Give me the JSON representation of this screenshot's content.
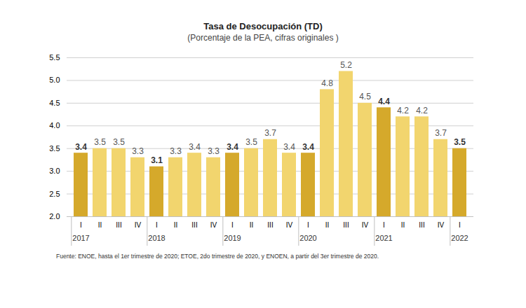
{
  "chart_data": {
    "type": "bar",
    "title": "Tasa de Desocupación (TD)",
    "subtitle": "(Porcentaje de la PEA, cifras originales )",
    "caption": "Fuente: ENOE, hasta el 1er trimestre de 2020; ETOE, 2do trimestre de 2020, y ENOEN, a partir del 3er trimestre de 2020.",
    "categories": [
      "I",
      "II",
      "III",
      "IV",
      "I",
      "II",
      "III",
      "IV",
      "I",
      "II",
      "III",
      "IV",
      "I",
      "II",
      "III",
      "IV",
      "I",
      "II",
      "III",
      "IV",
      "I"
    ],
    "year_labels": [
      "2017",
      null,
      null,
      null,
      "2018",
      null,
      null,
      null,
      "2019",
      null,
      null,
      null,
      "2020",
      null,
      null,
      null,
      "2021",
      null,
      null,
      null,
      "2022"
    ],
    "values": [
      3.4,
      3.5,
      3.5,
      3.3,
      3.1,
      3.3,
      3.4,
      3.3,
      3.4,
      3.5,
      3.7,
      3.4,
      3.4,
      4.8,
      5.2,
      4.5,
      4.4,
      4.2,
      4.2,
      3.7,
      3.5
    ],
    "colors": [
      "#d5a92b",
      "#f2d56e",
      "#f2d56e",
      "#f2d56e",
      "#d5a92b",
      "#f2d56e",
      "#f2d56e",
      "#f2d56e",
      "#d5a92b",
      "#f2d56e",
      "#f2d56e",
      "#f2d56e",
      "#d5a92b",
      "#f2d56e",
      "#f2d56e",
      "#f2d56e",
      "#d5a92b",
      "#f2d56e",
      "#f2d56e",
      "#f2d56e",
      "#d5a92b"
    ],
    "ylim": [
      2,
      5.5
    ],
    "yticks": [
      {
        "value": 2,
        "label": "2.0"
      },
      {
        "value": 2.5,
        "label": "2.5"
      },
      {
        "value": 3,
        "label": "3.0"
      },
      {
        "value": 3.5,
        "label": "3.5"
      },
      {
        "value": 4,
        "label": "4.0"
      },
      {
        "value": 4.5,
        "label": "4.5"
      },
      {
        "value": 5,
        "label": "5.0"
      },
      {
        "value": 5.5,
        "label": "5.5"
      }
    ],
    "grid": true,
    "data_labels": true
  }
}
